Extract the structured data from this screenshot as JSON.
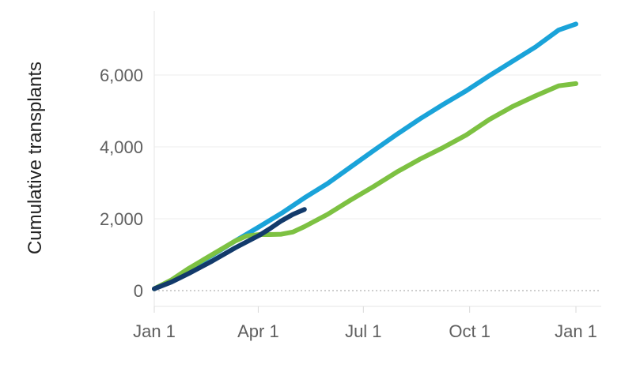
{
  "chart_data": {
    "type": "line",
    "title": "",
    "xlabel": "",
    "ylabel": "Cumulative transplants",
    "x_ticks": [
      "Jan 1",
      "Apr 1",
      "Jul 1",
      "Oct 1",
      "Jan 1"
    ],
    "y_ticks": [
      "0",
      "2,000",
      "4,000",
      "6,000"
    ],
    "x_range_days": [
      0,
      365
    ],
    "ylim": [
      -500,
      7800
    ],
    "grid": "horizontal",
    "legend": "none",
    "series": [
      {
        "color": "#1aa3d9",
        "points": [
          [
            0,
            50
          ],
          [
            15,
            280
          ],
          [
            30,
            600
          ],
          [
            50,
            980
          ],
          [
            70,
            1380
          ],
          [
            91,
            1780
          ],
          [
            110,
            2150
          ],
          [
            130,
            2580
          ],
          [
            150,
            2980
          ],
          [
            170,
            3440
          ],
          [
            190,
            3900
          ],
          [
            210,
            4350
          ],
          [
            230,
            4780
          ],
          [
            250,
            5180
          ],
          [
            270,
            5560
          ],
          [
            290,
            5980
          ],
          [
            310,
            6380
          ],
          [
            330,
            6780
          ],
          [
            350,
            7250
          ],
          [
            365,
            7420
          ]
        ]
      },
      {
        "color": "#7dc142",
        "points": [
          [
            0,
            50
          ],
          [
            15,
            300
          ],
          [
            30,
            620
          ],
          [
            50,
            1000
          ],
          [
            70,
            1380
          ],
          [
            80,
            1520
          ],
          [
            91,
            1560
          ],
          [
            100,
            1560
          ],
          [
            110,
            1570
          ],
          [
            120,
            1630
          ],
          [
            130,
            1780
          ],
          [
            150,
            2120
          ],
          [
            170,
            2520
          ],
          [
            190,
            2900
          ],
          [
            210,
            3300
          ],
          [
            230,
            3660
          ],
          [
            250,
            3980
          ],
          [
            270,
            4330
          ],
          [
            290,
            4760
          ],
          [
            310,
            5120
          ],
          [
            330,
            5420
          ],
          [
            350,
            5700
          ],
          [
            365,
            5760
          ]
        ]
      },
      {
        "color": "#123a6b",
        "points": [
          [
            0,
            50
          ],
          [
            15,
            240
          ],
          [
            30,
            480
          ],
          [
            50,
            820
          ],
          [
            70,
            1190
          ],
          [
            91,
            1540
          ],
          [
            100,
            1720
          ],
          [
            110,
            1940
          ],
          [
            120,
            2120
          ],
          [
            130,
            2260
          ]
        ]
      }
    ]
  }
}
